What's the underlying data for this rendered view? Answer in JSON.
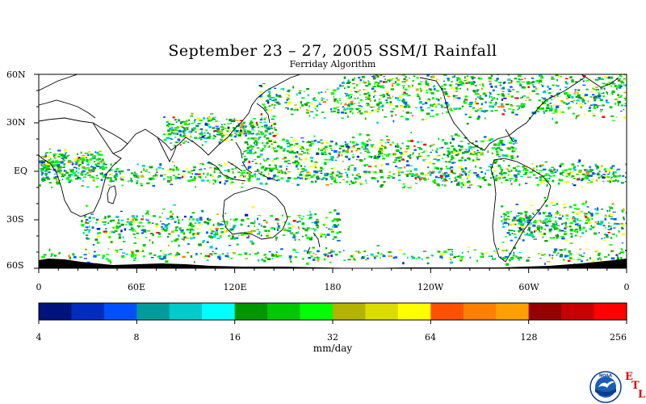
{
  "title": "September 23 – 27, 2005 SSM/I Rainfall",
  "subtitle": "Ferriday Algorithm",
  "map": {
    "lat_labels": [
      "60N",
      "30N",
      "EQ",
      "30S",
      "60S"
    ],
    "lon_labels": [
      "0",
      "60E",
      "120E",
      "180",
      "120W",
      "60W",
      "0"
    ],
    "rain_palette": [
      "#00c800",
      "#00ff00",
      "#00a000",
      "#00d0d0",
      "#0060ff",
      "#ffff00",
      "#ff8000",
      "#ff0000",
      "#a00000",
      "#c0c000",
      "#0020c0"
    ]
  },
  "colorbar": {
    "colors": [
      "#00137c",
      "#002dc0",
      "#0050ff",
      "#009c9c",
      "#00cccc",
      "#00ffff",
      "#009600",
      "#00c800",
      "#00ff00",
      "#b4b400",
      "#dcdc00",
      "#ffff00",
      "#ff5000",
      "#ff8000",
      "#ffa000",
      "#960000",
      "#c80000",
      "#ff0000"
    ],
    "tick_labels": [
      "4",
      "8",
      "16",
      "32",
      "64",
      "128",
      "256"
    ],
    "units": "mm/day"
  },
  "logo": {
    "text": "NOAA",
    "etl_letters": [
      "E",
      "T",
      "L"
    ],
    "colors": {
      "ring": "#ffffff",
      "sky": "#1a5fb4",
      "sea": "#0a3d91",
      "gull": "#ffffff"
    }
  }
}
